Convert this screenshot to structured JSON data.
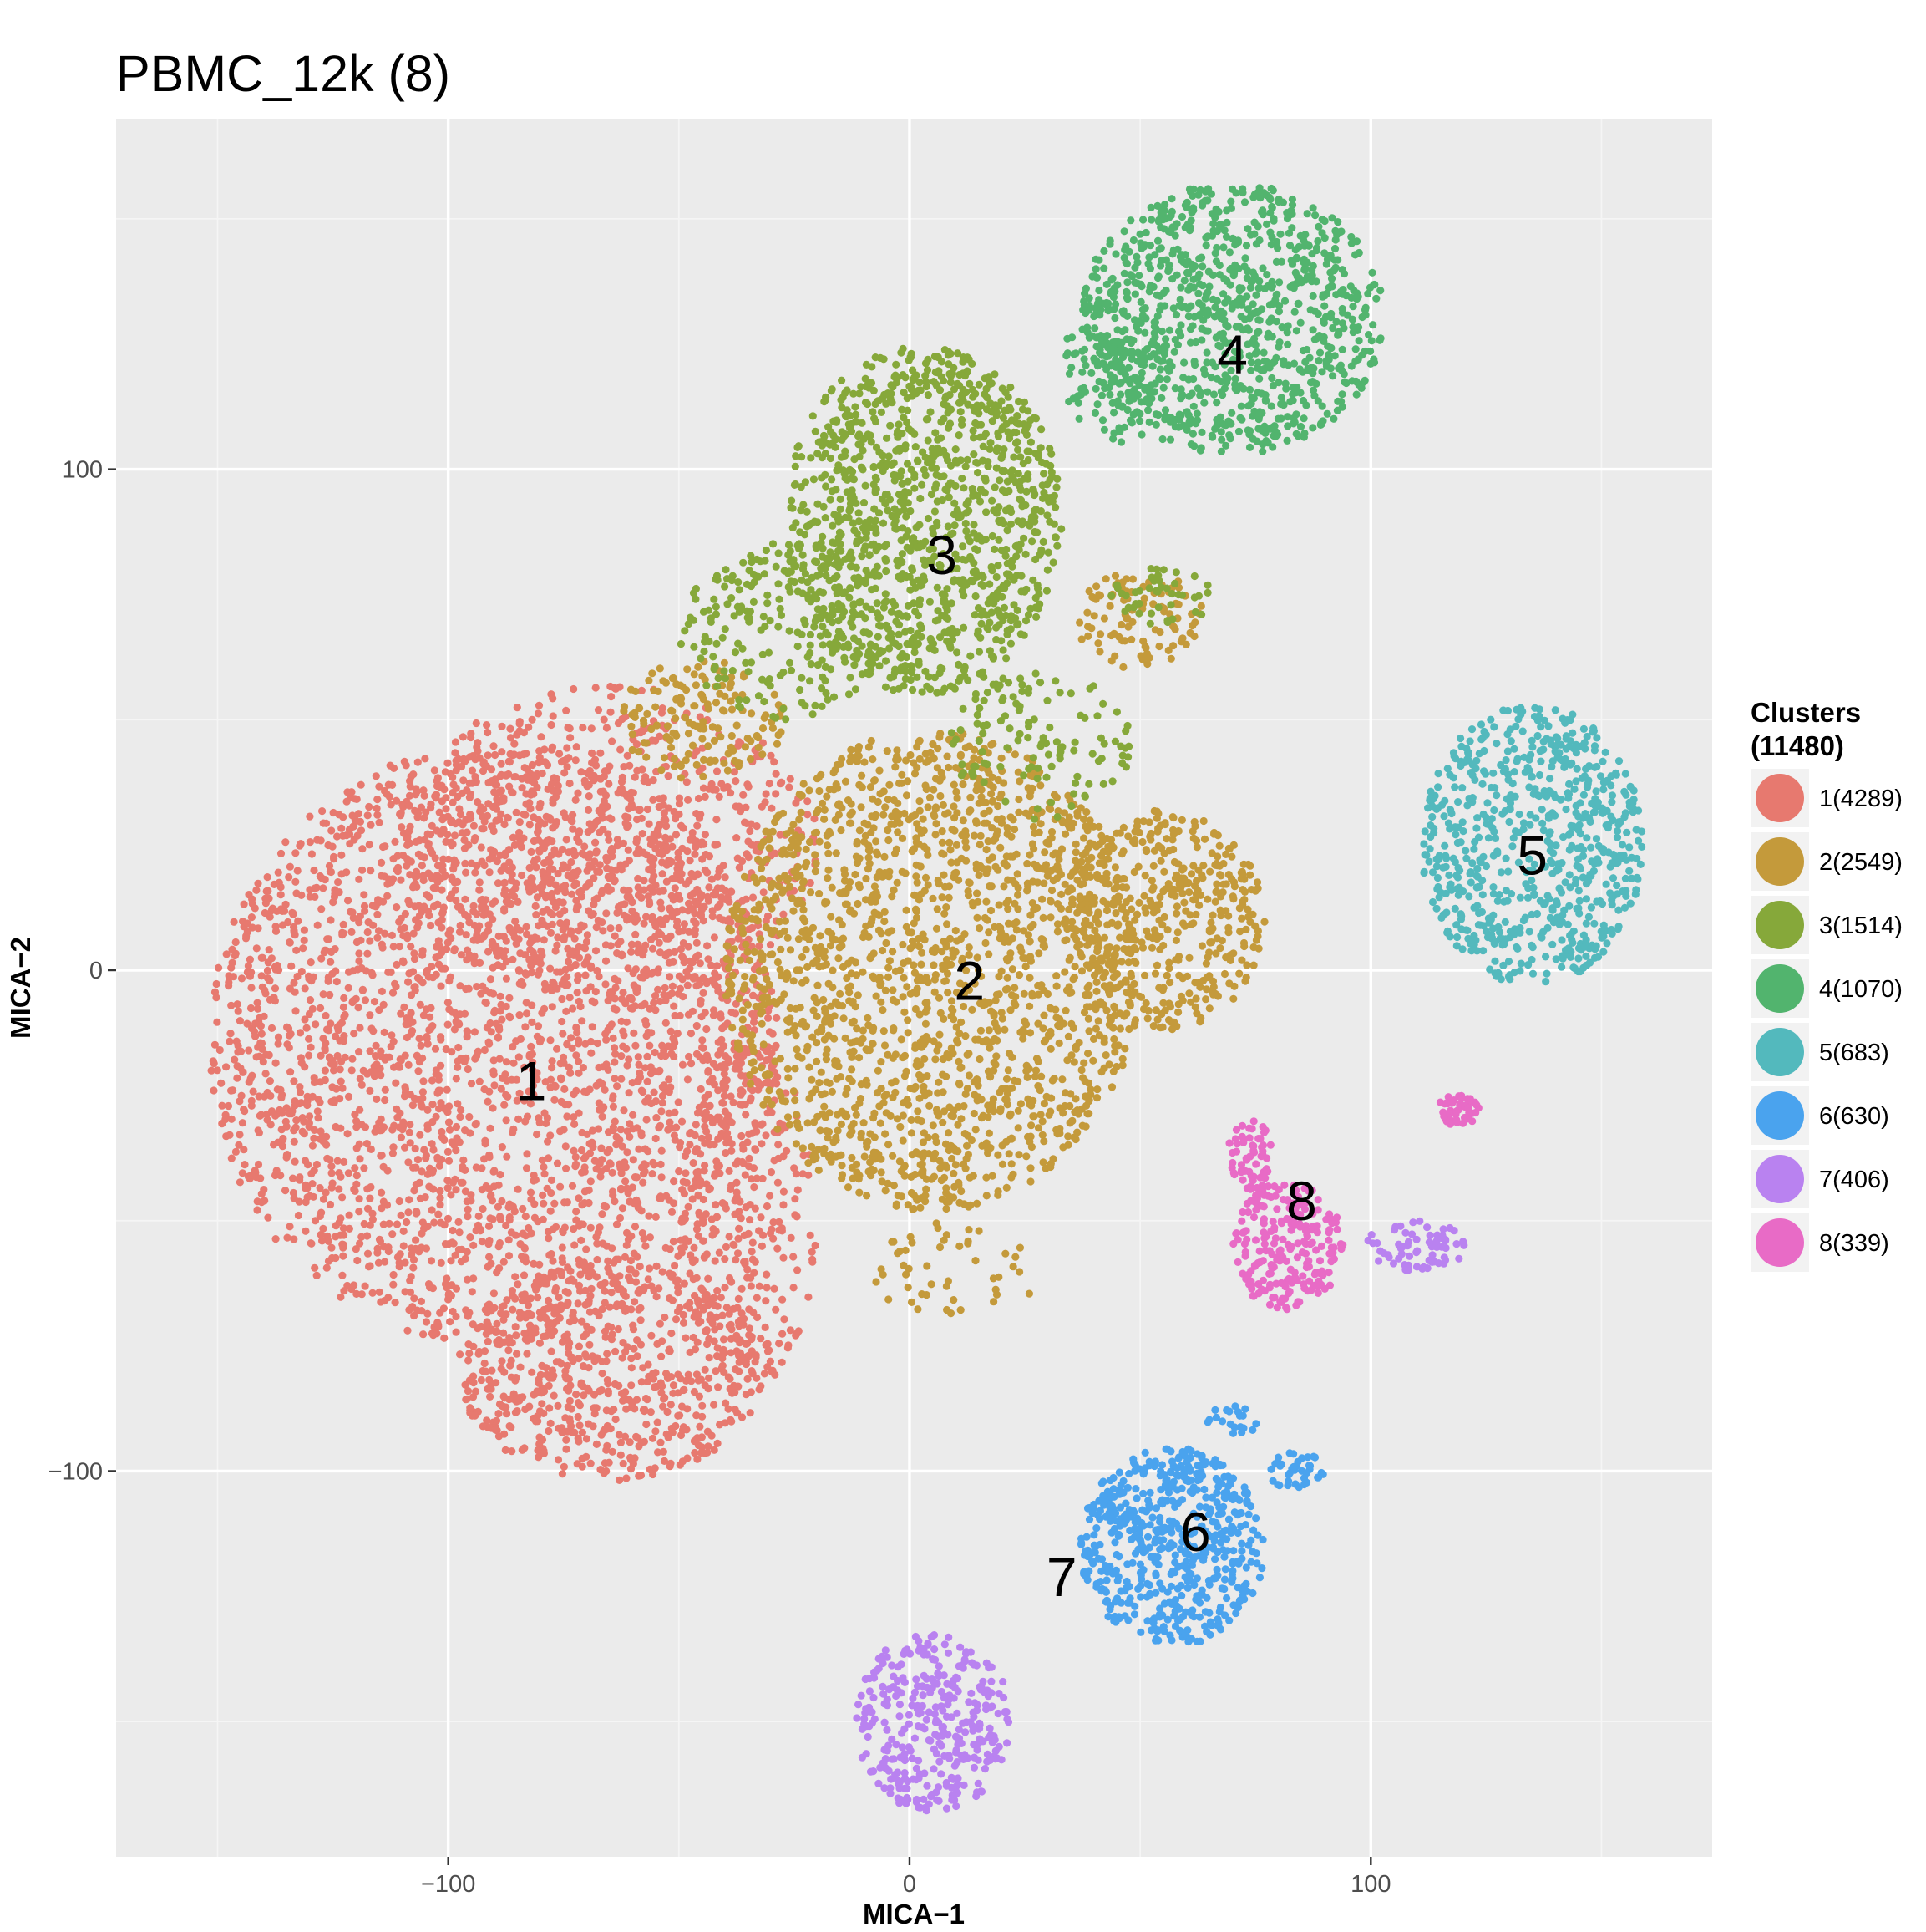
{
  "chart_data": {
    "type": "scatter",
    "title": "PBMC_12k (8)",
    "xlabel": "MICA−1",
    "ylabel": "MICA−2",
    "xlim": [
      -172,
      174
    ],
    "ylim": [
      -177,
      170
    ],
    "x_ticks": [
      {
        "value": -100,
        "label": "−100"
      },
      {
        "value": 0,
        "label": "0"
      },
      {
        "value": 100,
        "label": "100"
      }
    ],
    "y_ticks": [
      {
        "value": -100,
        "label": "−100"
      },
      {
        "value": 0,
        "label": "0"
      },
      {
        "value": 100,
        "label": "100"
      }
    ],
    "grid": true,
    "background": "#ebebeb",
    "legend": {
      "title_line1": "Clusters",
      "title_line2": "(11480)",
      "position": "right"
    },
    "series": [
      {
        "name": "1(4289)",
        "cluster": "1",
        "count": 4289,
        "color": "#e7796f",
        "label_pos": [
          -82,
          -23
        ],
        "regions": [
          {
            "cx": -90,
            "cy": -15,
            "rx": 62,
            "ry": 60,
            "n": 2700
          },
          {
            "cx": -65,
            "cy": 25,
            "rx": 45,
            "ry": 32,
            "n": 700
          },
          {
            "cx": -65,
            "cy": -80,
            "rx": 33,
            "ry": 22,
            "n": 600
          },
          {
            "cx": -35,
            "cy": -50,
            "rx": 15,
            "ry": 35,
            "n": 289
          }
        ]
      },
      {
        "name": "2(2549)",
        "cluster": "2",
        "count": 2549,
        "color": "#c49a3b",
        "label_pos": [
          13,
          -3
        ],
        "regions": [
          {
            "cx": 5,
            "cy": 0,
            "rx": 45,
            "ry": 48,
            "n": 1800
          },
          {
            "cx": 55,
            "cy": 10,
            "rx": 22,
            "ry": 22,
            "n": 450
          },
          {
            "cx": -45,
            "cy": 50,
            "rx": 18,
            "ry": 12,
            "n": 150
          },
          {
            "cx": 50,
            "cy": 70,
            "rx": 14,
            "ry": 10,
            "n": 100
          },
          {
            "cx": 10,
            "cy": -60,
            "rx": 18,
            "ry": 10,
            "n": 49
          }
        ]
      },
      {
        "name": "3(1514)",
        "cluster": "3",
        "count": 1514,
        "color": "#86a83a",
        "label_pos": [
          7,
          82
        ],
        "regions": [
          {
            "cx": 3,
            "cy": 90,
            "rx": 30,
            "ry": 35,
            "n": 1150
          },
          {
            "cx": -28,
            "cy": 68,
            "rx": 22,
            "ry": 18,
            "n": 200
          },
          {
            "cx": 28,
            "cy": 45,
            "rx": 20,
            "ry": 15,
            "n": 120
          },
          {
            "cx": 55,
            "cy": 75,
            "rx": 12,
            "ry": 6,
            "n": 44
          }
        ]
      },
      {
        "name": "4(1070)",
        "cluster": "4",
        "count": 1070,
        "color": "#52b46e",
        "label_pos": [
          70,
          122
        ],
        "regions": [
          {
            "cx": 70,
            "cy": 130,
            "rx": 33,
            "ry": 27,
            "n": 950
          },
          {
            "cx": 45,
            "cy": 120,
            "rx": 12,
            "ry": 15,
            "n": 120
          }
        ]
      },
      {
        "name": "5(683)",
        "cluster": "5",
        "count": 683,
        "color": "#53b9bd",
        "label_pos": [
          135,
          22
        ],
        "regions": [
          {
            "cx": 135,
            "cy": 25,
            "rx": 24,
            "ry": 28,
            "n": 683
          }
        ]
      },
      {
        "name": "6(630)",
        "cluster": "6",
        "count": 630,
        "color": "#4aa3ee",
        "label_pos": [
          62,
          -113
        ],
        "regions": [
          {
            "cx": 57,
            "cy": -115,
            "rx": 20,
            "ry": 20,
            "n": 570
          },
          {
            "cx": 84,
            "cy": -100,
            "rx": 6,
            "ry": 4,
            "n": 40
          },
          {
            "cx": 70,
            "cy": -90,
            "rx": 6,
            "ry": 3,
            "n": 20
          }
        ]
      },
      {
        "name": "7(406)",
        "cluster": "7",
        "count": 406,
        "color": "#b982f0",
        "label_pos": [
          33,
          -122
        ],
        "regions": [
          {
            "cx": 5,
            "cy": -150,
            "rx": 17,
            "ry": 18,
            "n": 340
          },
          {
            "cx": 110,
            "cy": -55,
            "rx": 11,
            "ry": 5,
            "n": 66
          }
        ]
      },
      {
        "name": "8(339)",
        "cluster": "8",
        "count": 339,
        "color": "#e86bc6",
        "label_pos": [
          85,
          -47
        ],
        "regions": [
          {
            "cx": 82,
            "cy": -55,
            "rx": 12,
            "ry": 13,
            "n": 220
          },
          {
            "cx": 74,
            "cy": -37,
            "rx": 5,
            "ry": 7,
            "n": 60
          },
          {
            "cx": 119,
            "cy": -28,
            "rx": 5,
            "ry": 3,
            "n": 59
          }
        ]
      }
    ]
  }
}
